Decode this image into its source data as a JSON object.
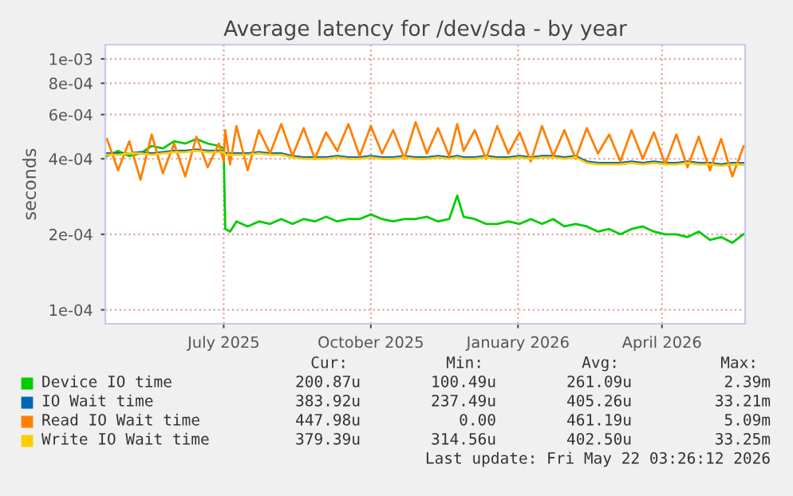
{
  "chart_data": {
    "type": "line",
    "title": "Average latency for /dev/sda - by year",
    "ylabel": "seconds",
    "log": "y",
    "grid": true,
    "legend": "bottom",
    "marker": "none",
    "line_style": "solid",
    "x": [
      "2025-04-19",
      "2025-04-26",
      "2025-05-03",
      "2025-05-10",
      "2025-05-17",
      "2025-05-24",
      "2025-05-31",
      "2025-06-07",
      "2025-06-14",
      "2025-06-21",
      "2025-06-28",
      "2025-07-01",
      "2025-07-02",
      "2025-07-05",
      "2025-07-09",
      "2025-07-16",
      "2025-07-23",
      "2025-07-30",
      "2025-08-06",
      "2025-08-13",
      "2025-08-20",
      "2025-08-27",
      "2025-09-03",
      "2025-09-10",
      "2025-09-17",
      "2025-09-24",
      "2025-10-01",
      "2025-10-08",
      "2025-10-15",
      "2025-10-22",
      "2025-10-29",
      "2025-11-05",
      "2025-11-12",
      "2025-11-19",
      "2025-11-24",
      "2025-11-28",
      "2025-12-05",
      "2025-12-12",
      "2025-12-19",
      "2025-12-26",
      "2026-01-02",
      "2026-01-09",
      "2026-01-16",
      "2026-01-23",
      "2026-01-30",
      "2026-02-06",
      "2026-02-13",
      "2026-02-20",
      "2026-02-27",
      "2026-03-06",
      "2026-03-13",
      "2026-03-20",
      "2026-03-27",
      "2026-04-03",
      "2026-04-10",
      "2026-04-17",
      "2026-04-24",
      "2026-05-01",
      "2026-05-08",
      "2026-05-15",
      "2026-05-22"
    ],
    "series": [
      {
        "name": "Device IO time",
        "color": "#00cc00",
        "values": [
          0.00041,
          0.00043,
          0.00041,
          0.00042,
          0.00045,
          0.00044,
          0.00047,
          0.00046,
          0.00048,
          0.00046,
          0.00045,
          0.00044,
          0.00021,
          0.000205,
          0.000225,
          0.000215,
          0.000225,
          0.00022,
          0.00023,
          0.00022,
          0.00023,
          0.000225,
          0.000235,
          0.000225,
          0.00023,
          0.00023,
          0.00024,
          0.00023,
          0.000225,
          0.00023,
          0.00023,
          0.000235,
          0.000225,
          0.00023,
          0.000285,
          0.000235,
          0.00023,
          0.00022,
          0.00022,
          0.000225,
          0.00022,
          0.00023,
          0.00022,
          0.00023,
          0.000215,
          0.00022,
          0.000215,
          0.000205,
          0.00021,
          0.0002,
          0.00021,
          0.000215,
          0.000205,
          0.0002,
          0.0002,
          0.000195,
          0.000205,
          0.00019,
          0.000195,
          0.000185,
          0.0002
        ]
      },
      {
        "name": "IO Wait time",
        "color": "#0066b3",
        "values": [
          0.00042,
          0.00042,
          0.00042,
          0.000425,
          0.00042,
          0.000425,
          0.00043,
          0.00043,
          0.000435,
          0.00043,
          0.00043,
          0.00043,
          0.00042,
          0.00042,
          0.00042,
          0.00042,
          0.000425,
          0.00042,
          0.00042,
          0.00041,
          0.000405,
          0.000405,
          0.000405,
          0.00041,
          0.000405,
          0.000405,
          0.00041,
          0.000405,
          0.000405,
          0.00041,
          0.000405,
          0.000405,
          0.00041,
          0.000405,
          0.00041,
          0.000405,
          0.000405,
          0.00041,
          0.000405,
          0.000405,
          0.00041,
          0.000405,
          0.00041,
          0.00041,
          0.000405,
          0.00041,
          0.00039,
          0.000385,
          0.000385,
          0.000385,
          0.00039,
          0.000385,
          0.00039,
          0.000385,
          0.000385,
          0.00039,
          0.000385,
          0.000385,
          0.00038,
          0.000385,
          0.000384
        ]
      },
      {
        "name": "Read IO Wait time",
        "color": "#ff8000",
        "values": [
          0.00048,
          0.00036,
          0.00047,
          0.00033,
          0.0005,
          0.00035,
          0.00046,
          0.00034,
          0.00049,
          0.00037,
          0.00046,
          0.00039,
          0.00052,
          0.00038,
          0.00054,
          0.00036,
          0.00052,
          0.00042,
          0.00055,
          0.00041,
          0.00053,
          0.0004,
          0.00051,
          0.00043,
          0.00055,
          0.00041,
          0.00054,
          0.00042,
          0.00052,
          0.0004,
          0.00056,
          0.00042,
          0.00053,
          0.00041,
          0.00055,
          0.00043,
          0.00052,
          0.0004,
          0.00054,
          0.00042,
          0.00051,
          0.00039,
          0.00054,
          0.00041,
          0.00052,
          0.0004,
          0.00053,
          0.00042,
          0.0005,
          0.00039,
          0.00052,
          0.0004,
          0.00051,
          0.00038,
          0.0005,
          0.00037,
          0.00049,
          0.00036,
          0.00048,
          0.00034,
          0.000448
        ]
      },
      {
        "name": "Write IO Wait time",
        "color": "#ffcc00",
        "values": [
          0.000415,
          0.000415,
          0.00042,
          0.00042,
          0.000415,
          0.00042,
          0.000425,
          0.000425,
          0.00043,
          0.000425,
          0.000425,
          0.000425,
          0.000415,
          0.000415,
          0.000415,
          0.000415,
          0.00042,
          0.000415,
          0.000415,
          0.000405,
          0.0004,
          0.0004,
          0.0004,
          0.000405,
          0.0004,
          0.0004,
          0.000405,
          0.0004,
          0.0004,
          0.000405,
          0.0004,
          0.0004,
          0.000405,
          0.0004,
          0.000405,
          0.0004,
          0.0004,
          0.000405,
          0.0004,
          0.0004,
          0.000405,
          0.0004,
          0.000405,
          0.000405,
          0.0004,
          0.000405,
          0.000385,
          0.00038,
          0.00038,
          0.00038,
          0.000385,
          0.00038,
          0.000385,
          0.00038,
          0.00038,
          0.000385,
          0.00038,
          0.00038,
          0.000375,
          0.00038,
          0.000379
        ]
      }
    ],
    "xlim": [
      "2025-04-18",
      "2026-05-23"
    ],
    "xticks": [
      {
        "value": "2025-07-01",
        "label": "July 2025"
      },
      {
        "value": "2025-10-01",
        "label": "October 2025"
      },
      {
        "value": "2026-01-01",
        "label": "January 2026"
      },
      {
        "value": "2026-04-01",
        "label": "April 2026"
      }
    ],
    "ylim": [
      8.8e-05,
      0.00114
    ],
    "yticks": [
      {
        "value": 0.0001,
        "label": "1e-04"
      },
      {
        "value": 0.0002,
        "label": "2e-04"
      },
      {
        "value": 0.0004,
        "label": "4e-04"
      },
      {
        "value": 0.0006,
        "label": "6e-04"
      },
      {
        "value": 0.0008,
        "label": "8e-04"
      },
      {
        "value": 0.001,
        "label": "1e-03"
      }
    ],
    "annotations": [
      "Cur:",
      "Min:",
      "Avg:",
      "Max:",
      "200.87u",
      "100.49u",
      "261.09u",
      "2.39m",
      "383.92u",
      "237.49u",
      "405.26u",
      "33.21m",
      "447.98u",
      "0.00",
      "461.19u",
      "5.09m",
      "379.39u",
      "314.56u",
      "402.50u",
      "33.25m",
      "Last update: Fri May 22 03:26:12 2026"
    ]
  }
}
